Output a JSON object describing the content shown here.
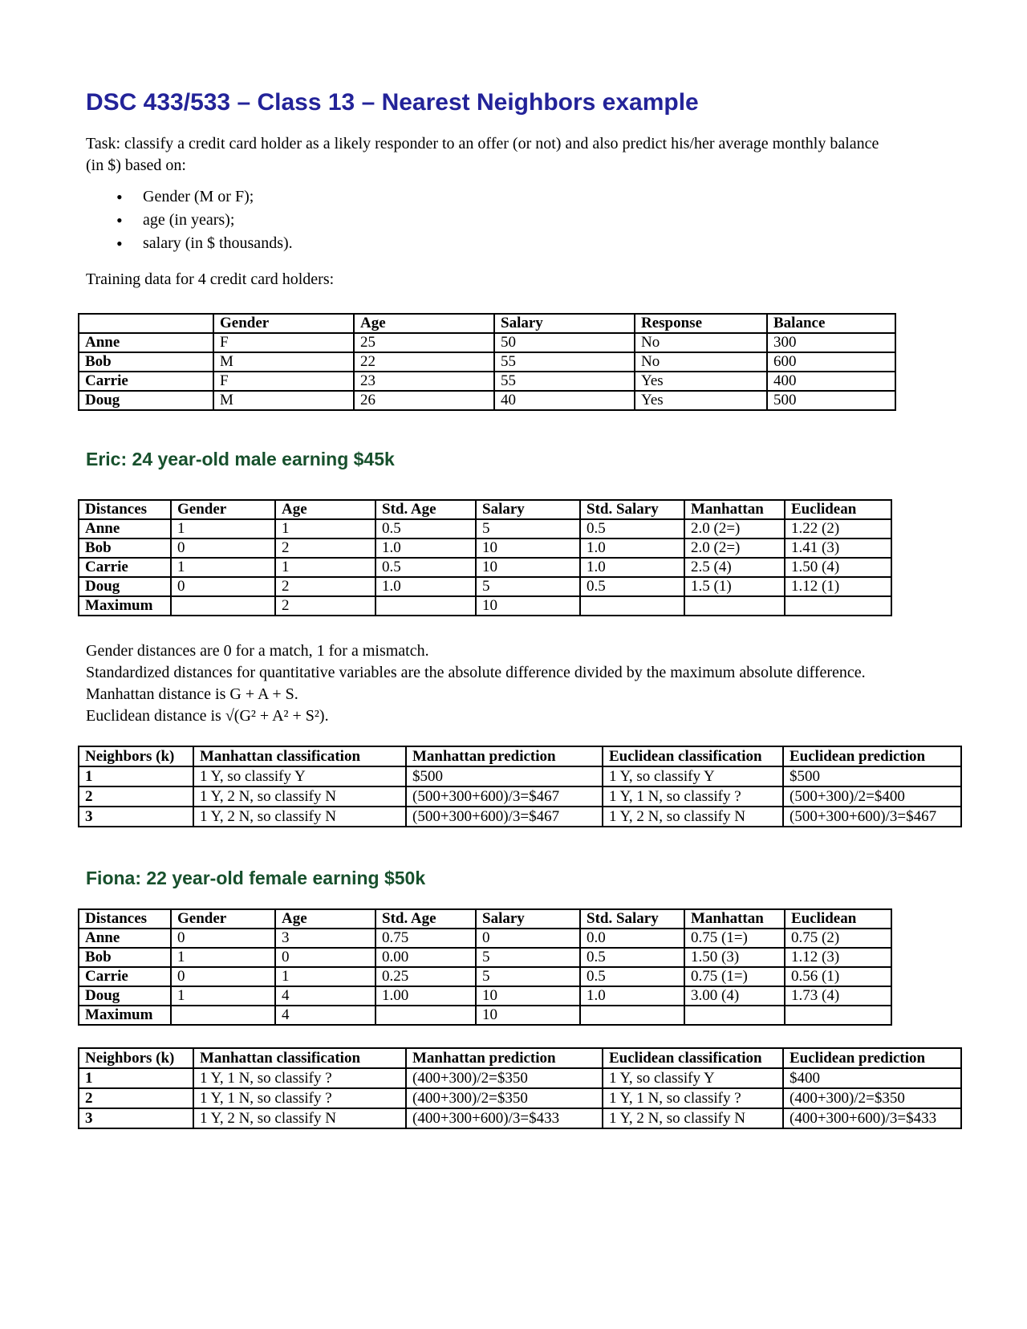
{
  "document": {
    "title": "DSC 433/533 – Class 13 – Nearest Neighbors example",
    "task_lines": [
      "Task: classify a credit card holder as a likely responder to an offer (or not) and also predict his/her average monthly balance",
      "(in $) based on:"
    ],
    "bullets": [
      "Gender (M or F);",
      "age (in years);",
      "salary (in $ thousands)."
    ],
    "training_intro": "Training data for 4 credit card holders:",
    "colors": {
      "title": "#232399",
      "section_heading": "#17502c"
    }
  },
  "training_table": {
    "headers": [
      "",
      "Gender",
      "Age",
      "Salary",
      "Response",
      "Balance"
    ],
    "rows": [
      [
        "Anne",
        "F",
        "25",
        "50",
        "No",
        "300"
      ],
      [
        "Bob",
        "M",
        "22",
        "55",
        "No",
        "600"
      ],
      [
        "Carrie",
        "F",
        "23",
        "55",
        "Yes",
        "400"
      ],
      [
        "Doug",
        "M",
        "26",
        "40",
        "Yes",
        "500"
      ]
    ]
  },
  "eric": {
    "heading": "Eric: 24 year-old male earning $45k",
    "distance_table": {
      "headers": [
        "Distances",
        "Gender",
        "Age",
        "Std. Age",
        "Salary",
        "Std. Salary",
        "Manhattan",
        "Euclidean"
      ],
      "rows": [
        [
          "Anne",
          "1",
          "1",
          "0.5",
          "5",
          "0.5",
          "2.0 (2=)",
          "1.22 (2)"
        ],
        [
          "Bob",
          "0",
          "2",
          "1.0",
          "10",
          "1.0",
          "2.0 (2=)",
          "1.41 (3)"
        ],
        [
          "Carrie",
          "1",
          "1",
          "0.5",
          "10",
          "1.0",
          "2.5 (4)",
          "1.50 (4)"
        ],
        [
          "Doug",
          "0",
          "2",
          "1.0",
          "5",
          "0.5",
          "1.5 (1)",
          "1.12 (1)"
        ],
        [
          "Maximum",
          "",
          "2",
          "",
          "10",
          "",
          "",
          ""
        ]
      ]
    },
    "notes": [
      "Gender distances are 0 for a match, 1 for a mismatch.",
      "Standardized distances for quantitative variables are the absolute difference divided by the maximum absolute difference.",
      "Manhattan distance is G + A + S.",
      "Euclidean distance is √(G² + A² + S²)."
    ],
    "k_table": {
      "headers": [
        "Neighbors (k)",
        "Manhattan classification",
        "Manhattan prediction",
        "Euclidean classification",
        "Euclidean prediction"
      ],
      "rows": [
        [
          "1",
          "1 Y, so classify Y",
          "$500",
          "1 Y, so classify Y",
          "$500"
        ],
        [
          "2",
          "1 Y, 2 N, so classify N",
          "(500+300+600)/3=$467",
          "1 Y, 1 N, so classify ?",
          "(500+300)/2=$400"
        ],
        [
          "3",
          "1 Y, 2 N, so classify N",
          "(500+300+600)/3=$467",
          "1 Y, 2 N, so classify N",
          "(500+300+600)/3=$467"
        ]
      ]
    }
  },
  "fiona": {
    "heading": "Fiona: 22 year-old female earning $50k",
    "distance_table": {
      "headers": [
        "Distances",
        "Gender",
        "Age",
        "Std. Age",
        "Salary",
        "Std. Salary",
        "Manhattan",
        "Euclidean"
      ],
      "rows": [
        [
          "Anne",
          "0",
          "3",
          "0.75",
          "0",
          "0.0",
          "0.75 (1=)",
          "0.75 (2)"
        ],
        [
          "Bob",
          "1",
          "0",
          "0.00",
          "5",
          "0.5",
          "1.50 (3)",
          "1.12 (3)"
        ],
        [
          "Carrie",
          "0",
          "1",
          "0.25",
          "5",
          "0.5",
          "0.75 (1=)",
          "0.56 (1)"
        ],
        [
          "Doug",
          "1",
          "4",
          "1.00",
          "10",
          "1.0",
          "3.00 (4)",
          "1.73 (4)"
        ],
        [
          "Maximum",
          "",
          "4",
          "",
          "10",
          "",
          "",
          ""
        ]
      ]
    },
    "k_table": {
      "headers": [
        "Neighbors (k)",
        "Manhattan classification",
        "Manhattan prediction",
        "Euclidean classification",
        "Euclidean prediction"
      ],
      "rows": [
        [
          "1",
          "1 Y, 1 N, so classify ?",
          "(400+300)/2=$350",
          "1 Y, so classify Y",
          "$400"
        ],
        [
          "2",
          "1 Y, 1 N, so classify ?",
          "(400+300)/2=$350",
          "1 Y, 1 N, so classify ?",
          "(400+300)/2=$350"
        ],
        [
          "3",
          "1 Y, 2 N, so classify N",
          "(400+300+600)/3=$433",
          "1 Y, 2 N, so classify N",
          "(400+300+600)/3=$433"
        ]
      ]
    }
  }
}
